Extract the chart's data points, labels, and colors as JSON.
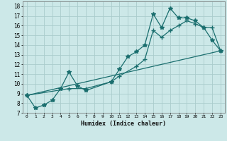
{
  "title": "",
  "xlabel": "Humidex (Indice chaleur)",
  "bg_color": "#cce8e8",
  "grid_color": "#aacccc",
  "line_color": "#1a6e6e",
  "xlim": [
    -0.5,
    23.5
  ],
  "ylim": [
    7,
    18.5
  ],
  "xticks": [
    0,
    1,
    2,
    3,
    4,
    5,
    6,
    7,
    8,
    9,
    10,
    11,
    12,
    13,
    14,
    15,
    16,
    17,
    18,
    19,
    20,
    21,
    22,
    23
  ],
  "yticks": [
    7,
    8,
    9,
    10,
    11,
    12,
    13,
    14,
    15,
    16,
    17,
    18
  ],
  "series1_x": [
    0,
    1,
    2,
    3,
    4,
    5,
    6,
    7,
    10,
    11,
    12,
    13,
    14,
    15,
    16,
    17,
    18,
    19,
    20,
    21,
    22,
    23
  ],
  "series1_y": [
    8.8,
    7.5,
    7.8,
    8.3,
    9.5,
    11.2,
    9.8,
    9.3,
    10.2,
    11.5,
    12.8,
    13.3,
    14.0,
    17.2,
    15.8,
    17.8,
    16.8,
    16.8,
    16.5,
    15.8,
    14.5,
    13.4
  ],
  "series2_x": [
    0,
    5,
    7,
    10,
    11,
    13,
    14,
    15,
    16,
    17,
    18,
    19,
    20,
    21,
    22,
    23
  ],
  "series2_y": [
    8.8,
    9.5,
    9.5,
    10.2,
    10.8,
    11.8,
    12.5,
    15.5,
    14.8,
    15.5,
    16.0,
    16.5,
    16.2,
    15.8,
    15.8,
    13.4
  ],
  "series3_x": [
    0,
    23
  ],
  "series3_y": [
    8.8,
    13.4
  ],
  "marker_size": 3.0,
  "linewidth": 0.9
}
